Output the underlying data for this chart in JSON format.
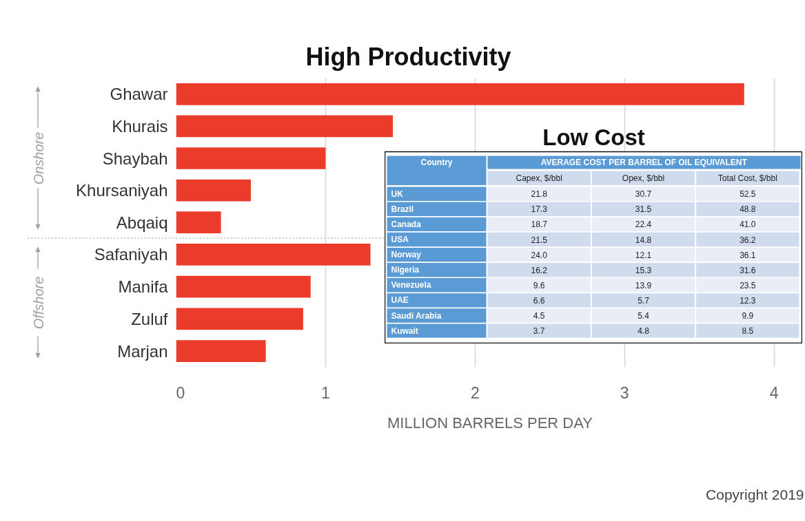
{
  "chart_data": [
    {
      "type": "bar",
      "orientation": "horizontal",
      "title": "High Productivity",
      "ylabel": "Onshore",
      "categories": [
        "Ghawar",
        "Khurais",
        "Shaybah",
        "Khursaniyah",
        "Abqaiq"
      ],
      "values": [
        3.8,
        1.45,
        1.0,
        0.5,
        0.3
      ],
      "color": "#eb3b2b",
      "xlim": [
        0,
        4.2
      ],
      "xticks": [
        0,
        1,
        2,
        3,
        4
      ],
      "grid": "x",
      "tick_labels": "y"
    },
    {
      "type": "bar",
      "orientation": "horizontal",
      "ylabel": "Offshore",
      "xlabel": "MILLION BARRELS PER DAY",
      "categories": [
        "Safaniyah",
        "Manifa",
        "Zuluf",
        "Marjan"
      ],
      "values": [
        1.3,
        0.9,
        0.85,
        0.6
      ],
      "color": "#eb3b2b",
      "xlim": [
        0,
        4.2
      ],
      "xticks": [
        0,
        1,
        2,
        3,
        4
      ],
      "grid": "x",
      "annotations": [
        "Copyright 2019"
      ]
    },
    {
      "type": "other",
      "title": "Low Cost",
      "subtitle": "AVERAGE COST PER BARREL OF OIL EQUIVALENT",
      "ylabel": "Country",
      "categories": [
        "UK",
        "Brazil",
        "Canada",
        "USA",
        "Norway",
        "Nigeria",
        "Venezuela",
        "UAE",
        "Saudi Arabia",
        "Kuwait"
      ],
      "series": [
        {
          "name": "Capex, $/bbl",
          "values": [
            21.8,
            17.3,
            18.7,
            21.5,
            24.0,
            16.2,
            9.6,
            6.6,
            4.5,
            3.7
          ],
          "value_labels": [
            "21.8",
            "17.3",
            "18.7",
            "21.5",
            "24.0",
            "16.2",
            "9.6",
            "6.6",
            "4.5",
            "3.7"
          ],
          "colors": [
            "#e9edf5",
            "#d0dbee",
            "#e9edf5",
            "#d0dbee",
            "#e9edf5",
            "#d0dbee",
            "#e9edf5",
            "#d0dbee",
            "#e9edf5",
            "#d0dbee"
          ]
        },
        {
          "name": "Opex, $/bbl",
          "values": [
            30.7,
            31.5,
            22.4,
            14.8,
            12.1,
            15.3,
            13.9,
            5.7,
            5.4,
            4.8
          ],
          "value_labels": [
            "30.7",
            "31.5",
            "22.4",
            "14.8",
            "12.1",
            "15.3",
            "13.9",
            "5.7",
            "5.4",
            "4.8"
          ],
          "colors": [
            "#e9edf5",
            "#d0dbee",
            "#e9edf5",
            "#d0dbee",
            "#e9edf5",
            "#d0dbee",
            "#e9edf5",
            "#d0dbee",
            "#e9edf5",
            "#d0dbee"
          ]
        },
        {
          "name": "Total Cost, $/bbl",
          "values": [
            52.5,
            48.8,
            41.0,
            36.2,
            36.1,
            31.6,
            23.5,
            12.3,
            9.9,
            8.5
          ],
          "value_labels": [
            "52.5",
            "48.8",
            "41.0",
            "36.2",
            "36.1",
            "31.6",
            "23.5",
            "12.3",
            "9.9",
            "8.5"
          ],
          "colors": [
            "#e9edf5",
            "#d0dbee",
            "#e9edf5",
            "#d0dbee",
            "#e9edf5",
            "#d0dbee",
            "#e9edf5",
            "#d0dbee",
            "#e9edf5",
            "#d0dbee"
          ]
        }
      ]
    }
  ]
}
